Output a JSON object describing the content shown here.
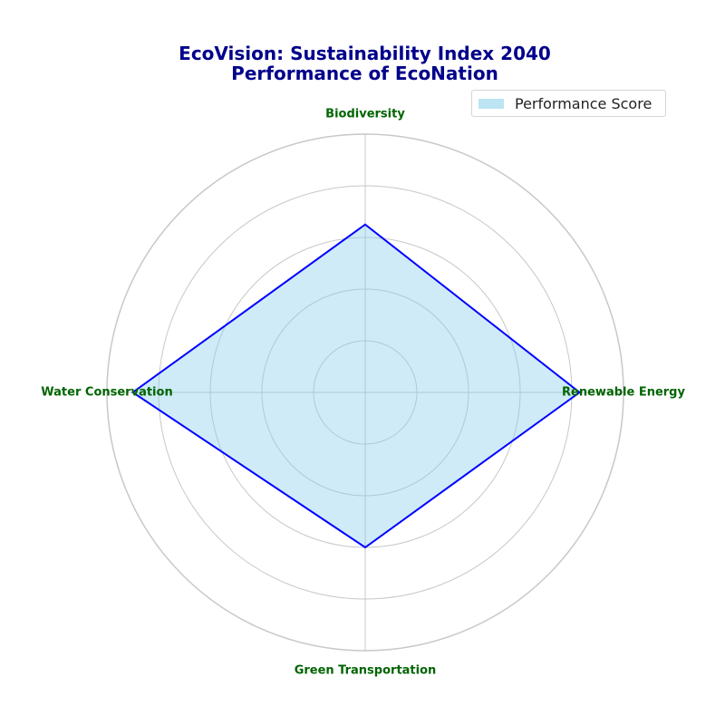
{
  "chart_data": {
    "type": "radar",
    "title": "EcoVision: Sustainability Index 2040",
    "subtitle": "Performance of EcoNation",
    "categories": [
      "Renewable Energy",
      "Biodiversity",
      "Water Conservation",
      "Green Transportation"
    ],
    "series": [
      {
        "name": "Performance Score",
        "values": [
          83,
          65,
          90,
          60
        ]
      }
    ],
    "rlim": [
      0,
      100
    ],
    "r_gridlines": [
      20,
      40,
      60,
      80,
      100
    ],
    "r_tick_labels_visible": false,
    "grid": true,
    "legend_position": "top-right"
  },
  "colors": {
    "title": "#00008b",
    "category_label": "#006400",
    "series_line": "#0000ff",
    "series_fill": "#87ceeb",
    "grid": "#c8c8c8"
  }
}
